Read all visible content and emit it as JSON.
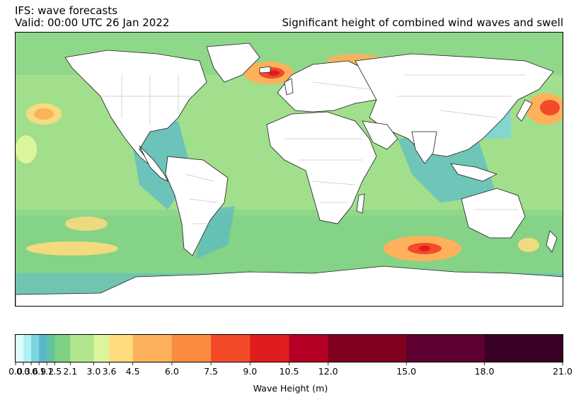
{
  "header": {
    "title_line1": "IFS: wave forecasts",
    "title_line2": "Valid: 00:00 UTC 26 Jan 2022",
    "right_title": "Significant height of combined wind waves and swell"
  },
  "colorbar": {
    "label": "Wave Height (m)",
    "bounds": [
      0.0,
      0.3,
      0.6,
      0.9,
      1.2,
      1.5,
      2.1,
      3.0,
      3.6,
      4.5,
      6.0,
      7.5,
      9.0,
      10.5,
      12.0,
      15.0,
      18.0,
      21.0
    ],
    "tick_labels": [
      "0.0",
      "0.3",
      "0.6",
      "0.9",
      "1.2",
      "1.5",
      "2.1",
      "3.0",
      "3.6",
      "4.5",
      "6.0",
      "7.5",
      "9.0",
      "10.5",
      "12.0",
      "15.0",
      "18.0",
      "21.0"
    ],
    "colors": [
      "#e0fbfc",
      "#aef0f4",
      "#7dd3de",
      "#5ab9c9",
      "#61c49e",
      "#7fd184",
      "#b2e58e",
      "#ddf59a",
      "#fedb7d",
      "#fdb15a",
      "#fa8c3f",
      "#f34a2a",
      "#e01d1e",
      "#b60025",
      "#800020",
      "#5e0030",
      "#3a0025",
      "#2a0020"
    ]
  },
  "map": {
    "ocean_base": "#8fd88a",
    "land": "#ffffff",
    "coast": "#1a1a1a",
    "border": "#aaaaaa"
  }
}
